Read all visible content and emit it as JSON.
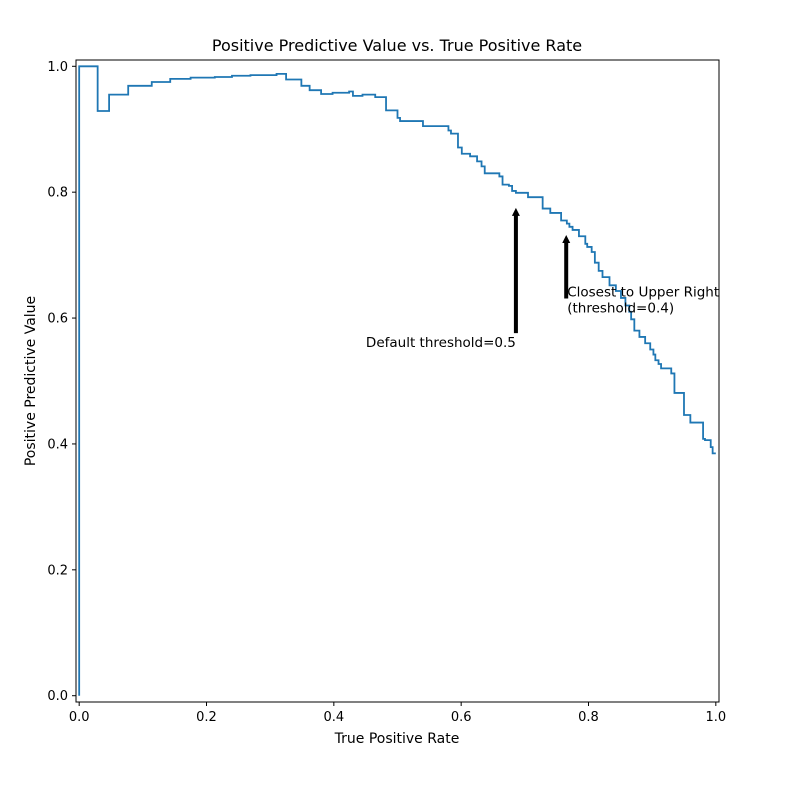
{
  "chart_data": {
    "type": "line",
    "title": "Positive Predictive Value vs. True Positive Rate",
    "xlabel": "True Positive Rate",
    "ylabel": "Positive Predictive Value",
    "xlim": [
      -0.005,
      1.005
    ],
    "ylim": [
      -0.01,
      1.01
    ],
    "xticks": [
      0.0,
      0.2,
      0.4,
      0.6,
      0.8,
      1.0
    ],
    "xtick_labels": [
      "0.0",
      "0.2",
      "0.4",
      "0.6",
      "0.8",
      "1.0"
    ],
    "yticks": [
      0.0,
      0.2,
      0.4,
      0.6,
      0.8,
      1.0
    ],
    "ytick_labels": [
      "0.0",
      "0.2",
      "0.4",
      "0.6",
      "0.8",
      "1.0"
    ],
    "grid": false,
    "line_color": "#1f77b4",
    "series": [
      {
        "step": "post",
        "x": [
          0.0,
          0.0,
          0.029,
          0.047,
          0.077,
          0.114,
          0.143,
          0.175,
          0.213,
          0.24,
          0.269,
          0.31,
          0.325,
          0.349,
          0.362,
          0.38,
          0.398,
          0.424,
          0.43,
          0.445,
          0.465,
          0.482,
          0.5,
          0.504,
          0.515,
          0.54,
          0.58,
          0.584,
          0.595,
          0.601,
          0.614,
          0.625,
          0.632,
          0.637,
          0.66,
          0.665,
          0.675,
          0.68,
          0.686,
          0.705,
          0.728,
          0.74,
          0.747,
          0.757,
          0.766,
          0.77,
          0.775,
          0.785,
          0.795,
          0.798,
          0.805,
          0.81,
          0.816,
          0.822,
          0.833,
          0.843,
          0.851,
          0.858,
          0.864,
          0.867,
          0.872,
          0.88,
          0.889,
          0.897,
          0.902,
          0.905,
          0.91,
          0.914,
          0.93,
          0.935,
          0.95,
          0.96,
          0.98,
          0.983,
          0.992,
          0.995,
          0.999,
          1.0
        ],
        "y": [
          0.0,
          1.0,
          0.929,
          0.955,
          0.969,
          0.975,
          0.98,
          0.982,
          0.983,
          0.985,
          0.986,
          0.988,
          0.979,
          0.969,
          0.962,
          0.956,
          0.958,
          0.96,
          0.953,
          0.955,
          0.951,
          0.93,
          0.918,
          0.913,
          0.913,
          0.905,
          0.898,
          0.893,
          0.871,
          0.861,
          0.857,
          0.849,
          0.841,
          0.83,
          0.825,
          0.812,
          0.81,
          0.802,
          0.799,
          0.792,
          0.774,
          0.767,
          0.767,
          0.755,
          0.75,
          0.745,
          0.74,
          0.73,
          0.718,
          0.713,
          0.705,
          0.688,
          0.675,
          0.665,
          0.652,
          0.643,
          0.632,
          0.62,
          0.61,
          0.598,
          0.58,
          0.57,
          0.56,
          0.55,
          0.542,
          0.533,
          0.527,
          0.52,
          0.512,
          0.481,
          0.446,
          0.434,
          0.408,
          0.406,
          0.395,
          0.385,
          0.385,
          0.385
        ]
      }
    ],
    "annotations": [
      {
        "text": "Default threshold=0.5",
        "point": [
          0.686,
          0.775
        ],
        "text_anchor_xy": [
          0.686,
          0.565
        ],
        "align": "right"
      },
      {
        "text": "Closest to Upper Right\n(threshold=0.4)",
        "point": [
          0.765,
          0.732
        ],
        "text_anchor_xy": [
          0.765,
          0.62
        ],
        "align": "left"
      }
    ]
  }
}
